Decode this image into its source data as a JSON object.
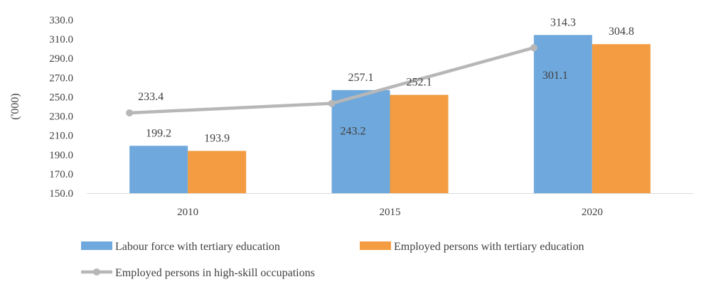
{
  "chart_data": {
    "type": "bar",
    "categories": [
      "2010",
      "2015",
      "2020"
    ],
    "ylabel": "('000)",
    "xlabel": "",
    "title": "",
    "ylim": [
      150,
      330
    ],
    "yticks": [
      150,
      170,
      190,
      210,
      230,
      250,
      270,
      290,
      310,
      330
    ],
    "ytick_format": "one-decimal",
    "grid": false,
    "legend_position": "bottom",
    "series": [
      {
        "name": "Labour force with tertiary education",
        "type": "bar",
        "color": "#6FA8DC",
        "values": [
          199.2,
          257.1,
          314.3
        ],
        "labels": [
          "199.2",
          "257.1",
          "314.3"
        ]
      },
      {
        "name": "Employed persons with tertiary education",
        "type": "bar",
        "color": "#F39C41",
        "values": [
          193.9,
          252.1,
          304.8
        ],
        "labels": [
          "193.9",
          "252.1",
          "304.8"
        ]
      },
      {
        "name": "Employed persons in high-skill occupations",
        "type": "line",
        "color": "#B7B7B7",
        "values": [
          233.4,
          243.2,
          301.1
        ],
        "labels": [
          "233.4",
          "243.2",
          "301.1"
        ]
      }
    ]
  }
}
